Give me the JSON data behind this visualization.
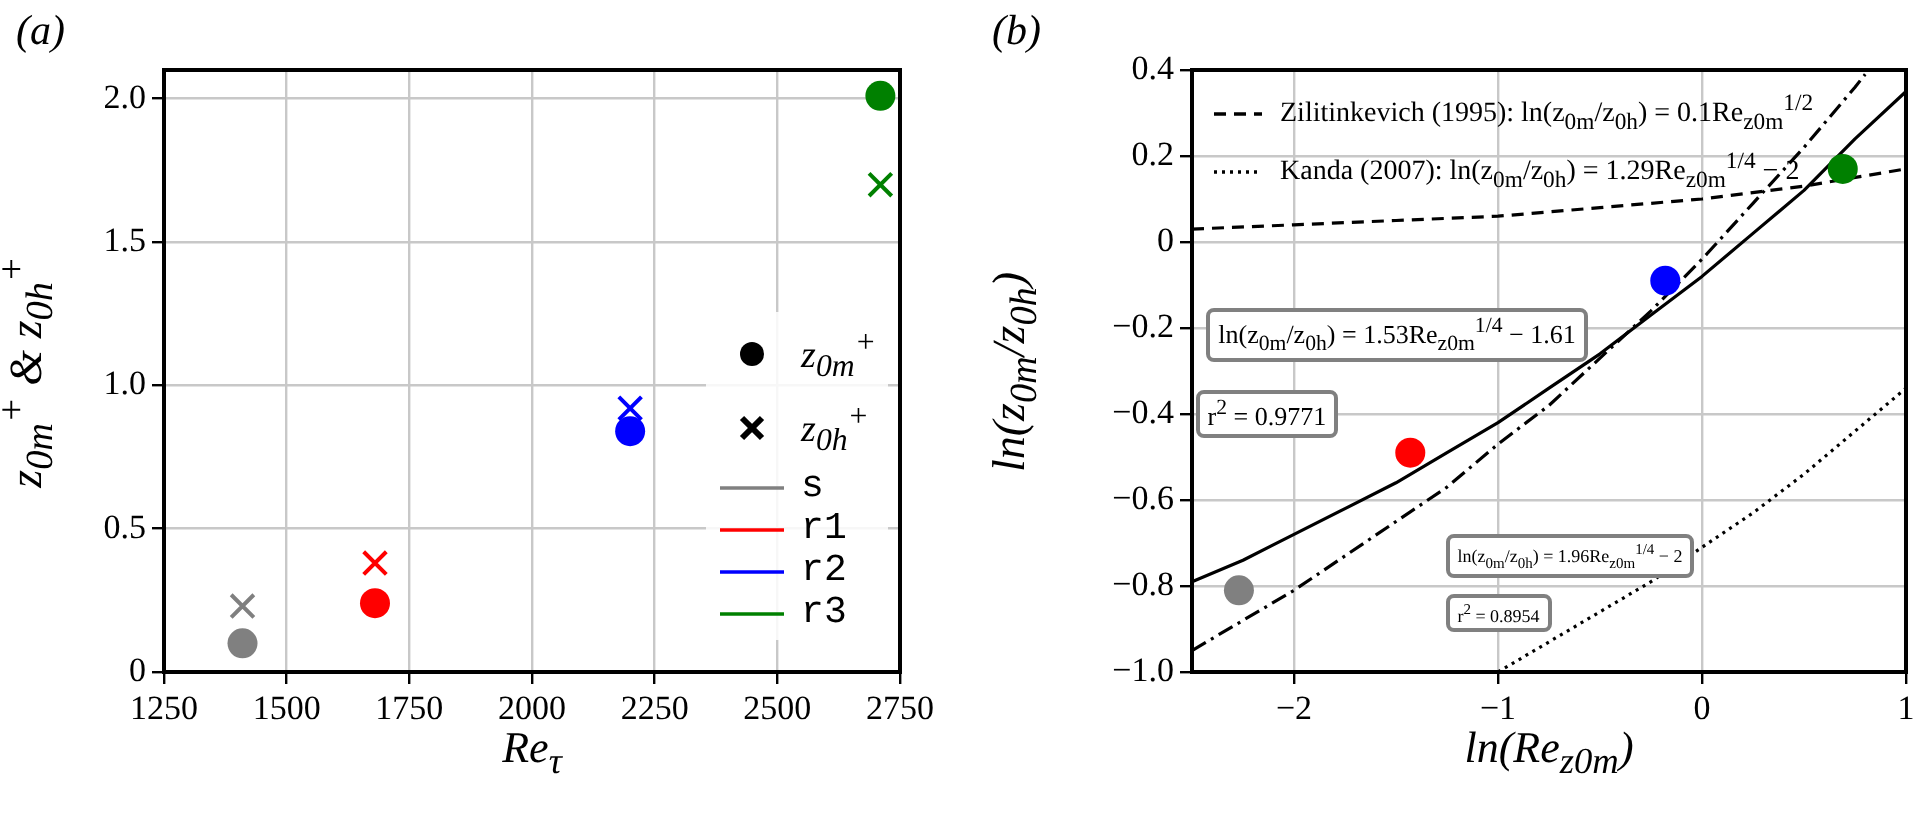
{
  "chart_data": [
    {
      "type": "scatter",
      "title": "(a)",
      "xlabel": "Re$_{τ}$",
      "ylabel": "z$_{0m}$$^{+}$ & z$_{0h}$$^{+}$",
      "series": [
        {
          "name": "s",
          "color": "#808080",
          "marker": "circle",
          "x": [
            1410
          ],
          "values": [
            0.1
          ]
        },
        {
          "name": "r1",
          "color": "#ff0000",
          "marker": "circle",
          "x": [
            1680
          ],
          "values": [
            0.24
          ]
        },
        {
          "name": "r2",
          "color": "#0000ff",
          "marker": "circle",
          "x": [
            2200
          ],
          "values": [
            0.84
          ]
        },
        {
          "name": "r3",
          "color": "#008000",
          "marker": "circle",
          "x": [
            2710
          ],
          "values": [
            2.01
          ]
        },
        {
          "color": "#808080",
          "marker": "cross",
          "x": [
            1410
          ],
          "values": [
            0.23
          ]
        },
        {
          "color": "#ff0000",
          "marker": "cross",
          "x": [
            1680
          ],
          "values": [
            0.38
          ]
        },
        {
          "color": "#0000ff",
          "marker": "cross",
          "x": [
            2200
          ],
          "values": [
            0.92
          ]
        },
        {
          "color": "#008000",
          "marker": "cross",
          "x": [
            2710
          ],
          "values": [
            1.7
          ]
        }
      ],
      "annotations": [
        "z$_{0m}$$^{+}$",
        "z$_{0h}$$^{+}$"
      ],
      "xlim": [
        1250,
        2750
      ],
      "xticks": [
        1250,
        1500,
        1750,
        2000,
        2250,
        2500,
        2750
      ],
      "ylim": [
        0,
        2.1
      ],
      "yticks": [
        0,
        {
          "value": 0.5,
          "label": "0.5"
        },
        {
          "value": 1,
          "label": "1.0"
        },
        {
          "value": 1.5,
          "label": "1.5"
        },
        {
          "value": 2,
          "label": "2.0"
        }
      ],
      "grid": true,
      "legend": "bottom right"
    },
    {
      "type": "scatter",
      "title": "(b)",
      "xlabel": "ln(Re$_{z0m}$)",
      "ylabel": "ln(z$_{0m}$/z$_{0h}$)",
      "series": [
        {
          "marker": "circle",
          "colors": [
            "#808080",
            "#ff0000",
            "#0000ff",
            "#008000"
          ],
          "x": [
            -2.27,
            -1.43,
            -0.18,
            0.69
          ],
          "values": [
            -0.81,
            -0.49,
            -0.09,
            0.17
          ]
        },
        {
          "type": "line",
          "color": "#000000",
          "line_style": "solid",
          "x": [
            -2.5,
            -2.25,
            -2,
            -1.75,
            -1.5,
            -1.25,
            -1,
            -0.75,
            -0.5,
            -0.25,
            0,
            0.25,
            0.5,
            0.75,
            1
          ],
          "values": [
            -0.79,
            -0.74,
            -0.68,
            -0.62,
            -0.56,
            -0.49,
            -0.42,
            -0.34,
            -0.26,
            -0.17,
            -0.08,
            0.02,
            0.12,
            0.24,
            0.35
          ]
        },
        {
          "type": "line",
          "color": "#000000",
          "line_style": "dashdot",
          "x": [
            -2.5,
            -2.25,
            -2,
            -1.75,
            -1.5,
            -1.25,
            -1,
            -0.75,
            -0.5,
            -0.25,
            0,
            0.25,
            0.5,
            0.75,
            0.8
          ],
          "values": [
            -0.95,
            -0.88,
            -0.81,
            -0.73,
            -0.65,
            -0.57,
            -0.47,
            -0.38,
            -0.27,
            -0.16,
            -0.04,
            0.09,
            0.22,
            0.36,
            0.39
          ]
        },
        {
          "name": "Zilitinkevich (1995): ln(z$_{0m}$/z$_{0h}$) = 0.1Re$_{z0m}$$^{1/2}$",
          "type": "line",
          "color": "#000000",
          "line_style": "dashed",
          "x": [
            -2.5,
            -2,
            -1.5,
            -1,
            -0.5,
            0,
            0.5,
            1
          ],
          "values": [
            0.03,
            0.04,
            0.05,
            0.06,
            0.08,
            0.1,
            0.13,
            0.17
          ]
        },
        {
          "name": "Kanda (2007): ln(z$_{0m}$/z$_{0h}$) = 1.29Re$_{z0m}$$^{1/4}$ − 2",
          "type": "line",
          "color": "#000000",
          "line_style": "dotted",
          "x": [
            -1,
            -0.75,
            -0.5,
            -0.25,
            0,
            0.25,
            0.5,
            0.75,
            1
          ],
          "values": [
            -1.0,
            -0.93,
            -0.86,
            -0.79,
            -0.71,
            -0.63,
            -0.54,
            -0.44,
            -0.34
          ]
        }
      ],
      "annotations": [
        "ln(z$_{0m}$/z$_{0h}$) = 1.53Re$_{z0m}$$^{1/4}$ − 1.61",
        "r$^{2}$ = 0.9771",
        "ln(z$_{0m}$/z$_{0h}$) = 1.96Re$_{z0m}$$^{1/4}$ − 2",
        "r$^{2}$ = 0.8954"
      ],
      "xlim": [
        -2.5,
        1
      ],
      "xticks": [
        {
          "value": -2,
          "label": "−2"
        },
        {
          "value": -1,
          "label": "−1"
        },
        0,
        1
      ],
      "ylim": [
        -1,
        0.4
      ],
      "yticks": [
        {
          "value": -1,
          "label": "−1.0"
        },
        {
          "value": -0.8,
          "label": "−0.8"
        },
        {
          "value": -0.6,
          "label": "−0.6"
        },
        {
          "value": -0.4,
          "label": "−0.4"
        },
        {
          "value": -0.2,
          "label": "−0.2"
        },
        0,
        {
          "value": 0.2,
          "label": "0.2"
        },
        {
          "value": 0.4,
          "label": "0.4"
        }
      ],
      "grid": true,
      "legend": "top left"
    }
  ]
}
